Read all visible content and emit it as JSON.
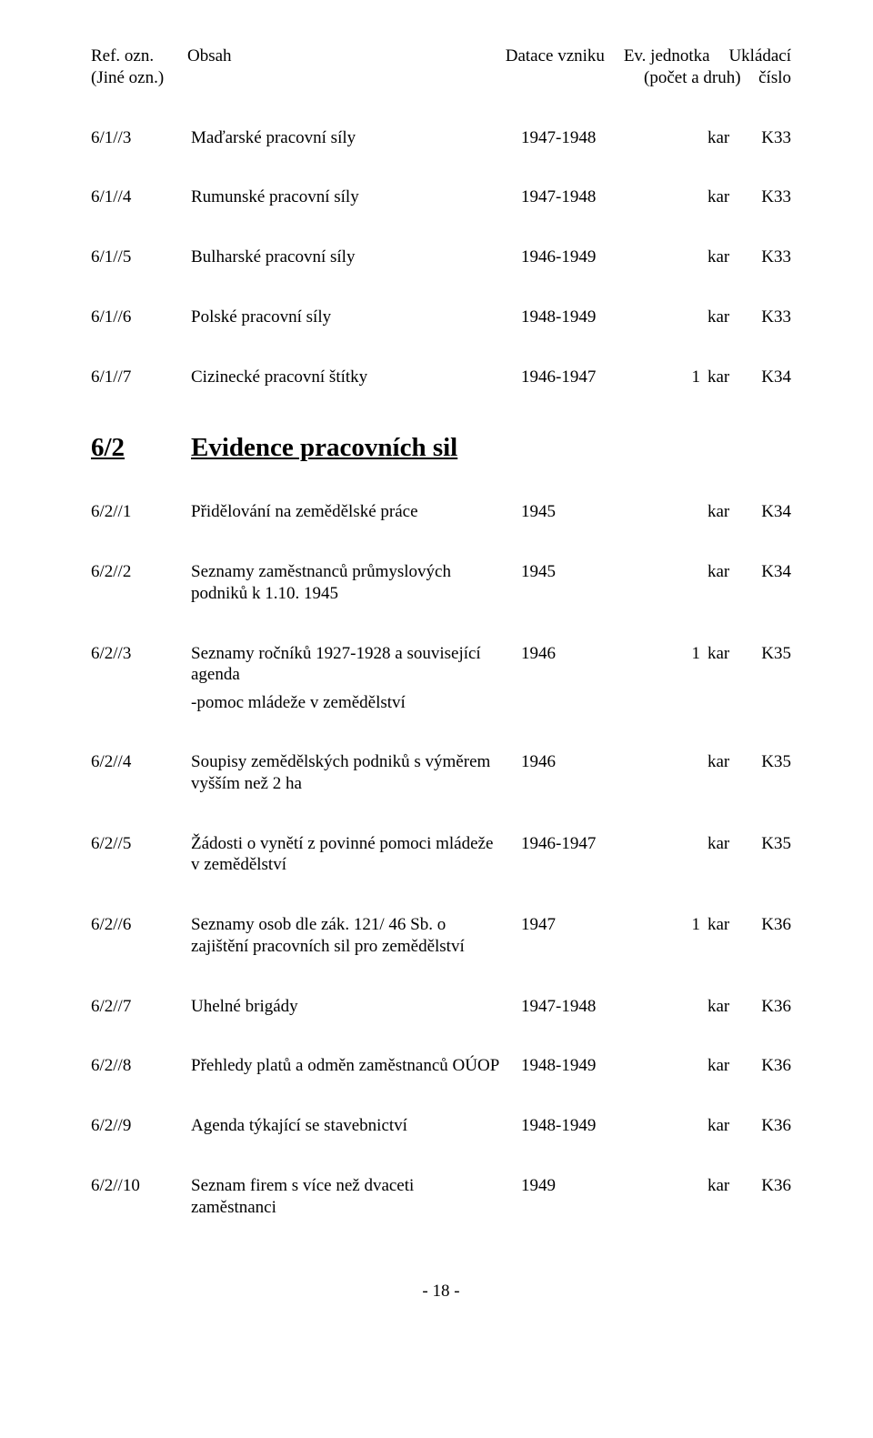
{
  "header": {
    "ref": "Ref. ozn.",
    "obsah": "Obsah",
    "datace": "Datace vzniku",
    "ev": "Ev. jednotka",
    "ukl": "Ukládací",
    "sub_ref": "(Jiné ozn.)",
    "sub_ev": "(počet a druh)",
    "sub_ukl": "číslo"
  },
  "section": {
    "ref": "6/2",
    "title": "Evidence pracovních sil"
  },
  "note": "-pomoc mládeže v zemědělství",
  "rows": {
    "r1": {
      "ref": "6/1//3",
      "obsah": "Maďarské pracovní síly",
      "dat": "1947-1948",
      "evn": "",
      "evu": "kar",
      "ukl": "K33"
    },
    "r2": {
      "ref": "6/1//4",
      "obsah": "Rumunské pracovní síly",
      "dat": "1947-1948",
      "evn": "",
      "evu": "kar",
      "ukl": "K33"
    },
    "r3": {
      "ref": "6/1//5",
      "obsah": "Bulharské pracovní síly",
      "dat": "1946-1949",
      "evn": "",
      "evu": "kar",
      "ukl": "K33"
    },
    "r4": {
      "ref": "6/1//6",
      "obsah": "Polské pracovní síly",
      "dat": "1948-1949",
      "evn": "",
      "evu": "kar",
      "ukl": "K33"
    },
    "r5": {
      "ref": "6/1//7",
      "obsah": "Cizinecké pracovní štítky",
      "dat": "1946-1947",
      "evn": "1",
      "evu": "kar",
      "ukl": "K34"
    },
    "r6": {
      "ref": "6/2//1",
      "obsah": "Přidělování na zemědělské práce",
      "dat": "1945",
      "evn": "",
      "evu": "kar",
      "ukl": "K34"
    },
    "r7": {
      "ref": "6/2//2",
      "obsah": "Seznamy zaměstnanců průmyslových podniků k 1.10. 1945",
      "dat": "1945",
      "evn": "",
      "evu": "kar",
      "ukl": "K34"
    },
    "r8": {
      "ref": "6/2//3",
      "obsah": "Seznamy ročníků 1927-1928 a související agenda",
      "dat": "1946",
      "evn": "1",
      "evu": "kar",
      "ukl": "K35"
    },
    "r9": {
      "ref": "6/2//4",
      "obsah": "Soupisy zemědělských podniků s výměrem vyšším než 2 ha",
      "dat": "1946",
      "evn": "",
      "evu": "kar",
      "ukl": "K35"
    },
    "r10": {
      "ref": "6/2//5",
      "obsah": "Žádosti o vynětí z povinné pomoci mládeže v zemědělství",
      "dat": "1946-1947",
      "evn": "",
      "evu": "kar",
      "ukl": "K35"
    },
    "r11": {
      "ref": "6/2//6",
      "obsah": "Seznamy osob dle zák. 121/ 46 Sb. o zajištění pracovních sil pro zemědělství",
      "dat": "1947",
      "evn": "1",
      "evu": "kar",
      "ukl": "K36"
    },
    "r12": {
      "ref": "6/2//7",
      "obsah": "Uhelné brigády",
      "dat": "1947-1948",
      "evn": "",
      "evu": "kar",
      "ukl": "K36"
    },
    "r13": {
      "ref": "6/2//8",
      "obsah": "Přehledy platů a odměn zaměstnanců OÚOP",
      "dat": "1948-1949",
      "evn": "",
      "evu": "kar",
      "ukl": "K36"
    },
    "r14": {
      "ref": "6/2//9",
      "obsah": "Agenda týkající se stavebnictví",
      "dat": "1948-1949",
      "evn": "",
      "evu": "kar",
      "ukl": "K36"
    },
    "r15": {
      "ref": "6/2//10",
      "obsah": "Seznam firem s více než dvaceti zaměstnanci",
      "dat": "1949",
      "evn": "",
      "evu": "kar",
      "ukl": "K36"
    }
  },
  "page_number": "- 18 -"
}
